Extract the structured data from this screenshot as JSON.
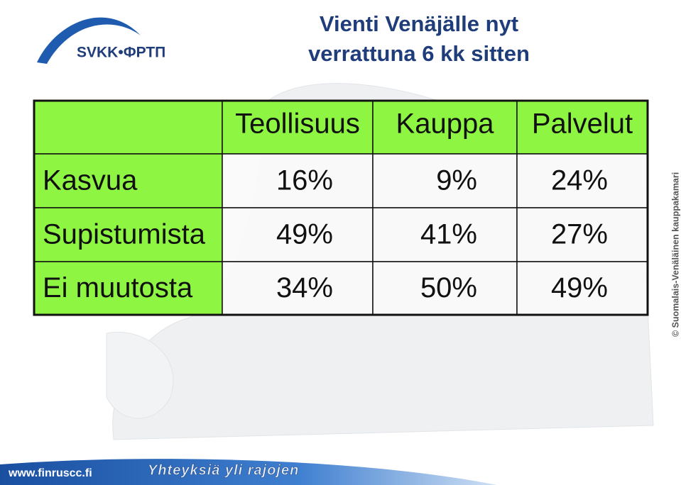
{
  "logo": {
    "text": "SVKK•ФРТП"
  },
  "header": {
    "title_lines": [
      "Vienti Venäjälle nyt",
      "verrattuna 6 kk sitten"
    ]
  },
  "table": {
    "columns": [
      "Teollisuus",
      "Kauppa",
      "Palvelut"
    ],
    "rows": [
      [
        "Kasvua",
        "16%",
        "9%",
        "24%"
      ],
      [
        "Supistumista",
        "49%",
        "41%",
        "27%"
      ],
      [
        "Ei muutosta",
        "34%",
        "50%",
        "49%"
      ]
    ]
  },
  "side_note": "© Suomalais-Venäläinen kauppakamari",
  "footer": {
    "url": "www.finruscc.fi",
    "slogan": "Yhteyksiä yli rajojen"
  }
}
